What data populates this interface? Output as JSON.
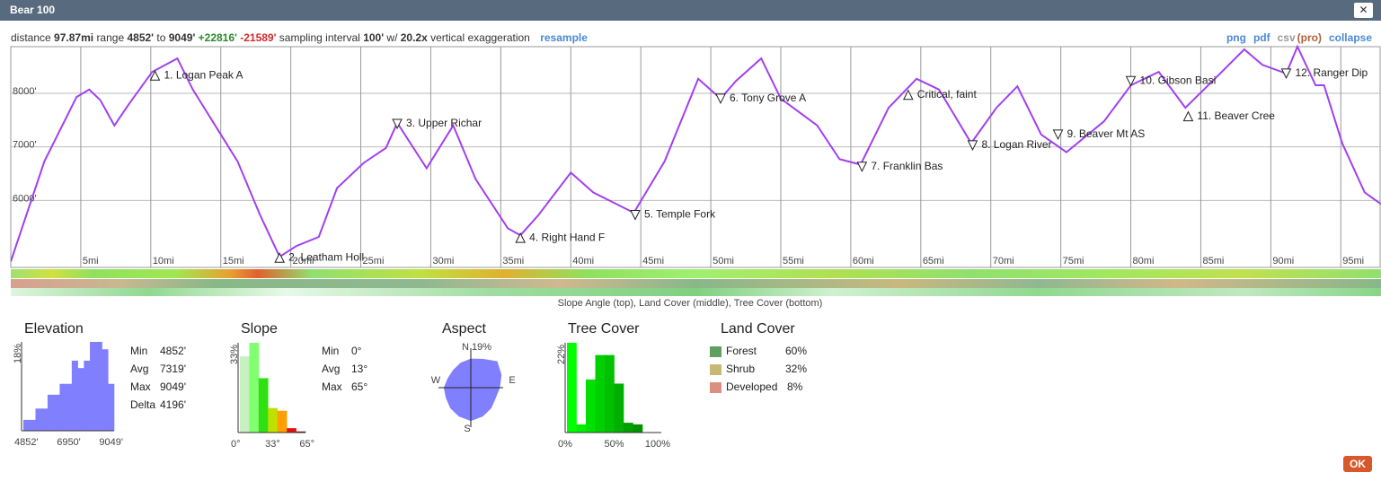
{
  "dialog": {
    "title": "Bear 100",
    "close": "✕",
    "ok": "OK"
  },
  "stats": [
    {
      "text": "distance"
    },
    {
      "text": "97.87mi",
      "style": "bold"
    },
    {
      "text": "range"
    },
    {
      "text": "4852'",
      "style": "bold"
    },
    {
      "text": "to"
    },
    {
      "text": "9049'",
      "style": "bold"
    },
    {
      "text": "+22816'",
      "style": "green"
    },
    {
      "text": "-21589'",
      "style": "red"
    },
    {
      "text": "sampling interval"
    },
    {
      "text": "100'",
      "style": "bold"
    },
    {
      "text": "w/"
    },
    {
      "text": "20.2x",
      "style": "bold"
    },
    {
      "text": "vertical exaggeration"
    },
    {
      "text": "resample",
      "style": "link"
    }
  ],
  "links": [
    {
      "text": "png",
      "style": "link"
    },
    {
      "text": "pdf",
      "style": "link"
    },
    {
      "text": "csv",
      "style": "muted"
    },
    {
      "text": "(pro)",
      "style": "pro"
    },
    {
      "text": "collapse",
      "style": "link"
    }
  ],
  "profile": {
    "color": "#a040f0",
    "xlim": [
      0,
      97.87
    ],
    "ylim": [
      4750,
      8870
    ],
    "xticks": [
      {
        "value": 5,
        "label": "5mi"
      },
      {
        "value": 10,
        "label": "10mi"
      },
      {
        "value": 15,
        "label": "15mi"
      },
      {
        "value": 20,
        "label": "20mi"
      },
      {
        "value": 25,
        "label": "25mi"
      },
      {
        "value": 30,
        "label": "30mi"
      },
      {
        "value": 35,
        "label": "35mi"
      },
      {
        "value": 40,
        "label": "40mi"
      },
      {
        "value": 45,
        "label": "45mi"
      },
      {
        "value": 50,
        "label": "50mi"
      },
      {
        "value": 55,
        "label": "55mi"
      },
      {
        "value": 60,
        "label": "60mi"
      },
      {
        "value": 65,
        "label": "65mi"
      },
      {
        "value": 70,
        "label": "70mi"
      },
      {
        "value": 75,
        "label": "75mi"
      },
      {
        "value": 80,
        "label": "80mi"
      },
      {
        "value": 85,
        "label": "85mi"
      },
      {
        "value": 90,
        "label": "90mi"
      },
      {
        "value": 95,
        "label": "95mi"
      }
    ],
    "yticks": [
      {
        "value": 6000,
        "label": "6000'"
      },
      {
        "value": 7000,
        "label": "7000'"
      },
      {
        "value": 8000,
        "label": "8000'"
      }
    ],
    "x": [
      0,
      2.4,
      4.7,
      5.6,
      6.4,
      7.4,
      8.5,
      10.1,
      11.9,
      13.0,
      14.6,
      16.2,
      17.8,
      19.2,
      20.4,
      22.0,
      23.3,
      25.2,
      26.8,
      27.6,
      29.7,
      31.6,
      33.2,
      35.5,
      36.4,
      37.7,
      40.0,
      41.6,
      44.5,
      46.7,
      49.1,
      50.7,
      51.8,
      53.6,
      55.0,
      57.6,
      59.2,
      60.7,
      62.7,
      64.7,
      66.3,
      68.6,
      70.4,
      71.9,
      73.6,
      75.4,
      78.1,
      80.0,
      82.0,
      83.9,
      86.5,
      88.1,
      89.4,
      91.1,
      91.9,
      93.2,
      93.8,
      95.1,
      96.7,
      97.87
    ],
    "elevation": [
      4860,
      6730,
      7930,
      8070,
      7870,
      7400,
      7820,
      8400,
      8650,
      8070,
      7400,
      6730,
      5730,
      4950,
      5150,
      5320,
      6230,
      6700,
      6980,
      7450,
      6600,
      7400,
      6400,
      5480,
      5350,
      5730,
      6520,
      6150,
      5770,
      6730,
      8270,
      7900,
      8230,
      8650,
      7900,
      7400,
      6770,
      6670,
      7730,
      8270,
      8070,
      7070,
      7730,
      8130,
      7230,
      6900,
      7480,
      8150,
      8400,
      7730,
      8400,
      8820,
      8530,
      8370,
      8870,
      8150,
      8150,
      7070,
      6150,
      5930
    ]
  },
  "waypoints": [
    {
      "name": "1. Logan Peak A",
      "mile": 10.3,
      "elevation": 8330,
      "marker": "up"
    },
    {
      "name": "2. Leatham Holl",
      "mile": 19.2,
      "elevation": 4930,
      "marker": "up"
    },
    {
      "name": "3. Upper Richar",
      "mile": 27.6,
      "elevation": 7430,
      "marker": "down"
    },
    {
      "name": "4. Right Hand F",
      "mile": 36.4,
      "elevation": 5300,
      "marker": "up"
    },
    {
      "name": "5. Temple Fork",
      "mile": 44.6,
      "elevation": 5730,
      "marker": "down"
    },
    {
      "name": "6. Tony Grove A",
      "mile": 50.7,
      "elevation": 7900,
      "marker": "down"
    },
    {
      "name": "7. Franklin Bas",
      "mile": 60.8,
      "elevation": 6630,
      "marker": "down"
    },
    {
      "name": "Critical, faint",
      "mile": 64.1,
      "elevation": 7970,
      "marker": "up"
    },
    {
      "name": "8. Logan River",
      "mile": 68.7,
      "elevation": 7030,
      "marker": "down"
    },
    {
      "name": "9. Beaver Mt AS",
      "mile": 74.8,
      "elevation": 7230,
      "marker": "down"
    },
    {
      "name": "10. Gibson Basi",
      "mile": 80.0,
      "elevation": 8230,
      "marker": "down"
    },
    {
      "name": "11. Beaver Cree",
      "mile": 84.1,
      "elevation": 7570,
      "marker": "up"
    },
    {
      "name": "12. Ranger Dip",
      "mile": 91.1,
      "elevation": 8370,
      "marker": "down"
    }
  ],
  "strip_caption": "Slope Angle (top), Land Cover (middle), Tree Cover (bottom)",
  "elevation_panel": {
    "title": "Elevation",
    "ymax": {
      "value": 18,
      "label": "18%"
    },
    "color": "#8080ff",
    "values": [
      2.2,
      2.2,
      4.5,
      4.5,
      7.3,
      7.3,
      9.5,
      9.5,
      14.2,
      12.7,
      14.2,
      18,
      18,
      16.5,
      9.5
    ],
    "axis_labels": [
      "4852'",
      "6950'",
      "9049'"
    ],
    "stats": [
      [
        "Min",
        "4852'"
      ],
      [
        "Avg",
        "7319'"
      ],
      [
        "Max",
        "9049'"
      ],
      [
        "Delta",
        "4196'"
      ]
    ]
  },
  "slope_panel": {
    "title": "Slope",
    "ymax": {
      "value": 33,
      "label": "33%"
    },
    "colors": [
      "#c8f0c0",
      "#80ff70",
      "#30e010",
      "#c0e000",
      "#ffa000",
      "#e01010",
      "#800000"
    ],
    "values": [
      28,
      33,
      20,
      9,
      8,
      1.6,
      0.4
    ],
    "axis_labels": [
      "0°",
      "33°",
      "65°"
    ],
    "stats": [
      [
        "Min",
        "0°"
      ],
      [
        "Avg",
        "13°"
      ],
      [
        "Max",
        "65°"
      ]
    ]
  },
  "aspect_panel": {
    "title": "Aspect",
    "rmax": {
      "value": 19,
      "label": "19%"
    },
    "color": "#8080ff",
    "values": [
      14,
      15,
      18,
      16,
      14,
      13,
      14,
      15,
      16,
      15,
      14,
      13,
      13,
      12,
      12,
      13
    ],
    "directions": [
      "N",
      "E",
      "S",
      "W"
    ]
  },
  "tree_panel": {
    "title": "Tree Cover",
    "ymax": {
      "value": 22,
      "label": "22%"
    },
    "colors": [
      "#00ff00",
      "#00f000",
      "#00e000",
      "#00d000",
      "#00c000",
      "#00b000",
      "#00a000",
      "#009000",
      "#008000",
      "#007000"
    ],
    "values": [
      22,
      2,
      13,
      19,
      19,
      12,
      2.4,
      2.0,
      0,
      0
    ],
    "axis_labels": [
      "0%",
      "50%",
      "100%"
    ]
  },
  "land_panel": {
    "title": "Land Cover",
    "items": [
      {
        "name": "Forest",
        "percent": "60%",
        "color": "#5fa060"
      },
      {
        "name": "Shrub",
        "percent": "32%",
        "color": "#c8b878"
      },
      {
        "name": "Developed",
        "percent": "8%",
        "color": "#d99080"
      }
    ]
  }
}
